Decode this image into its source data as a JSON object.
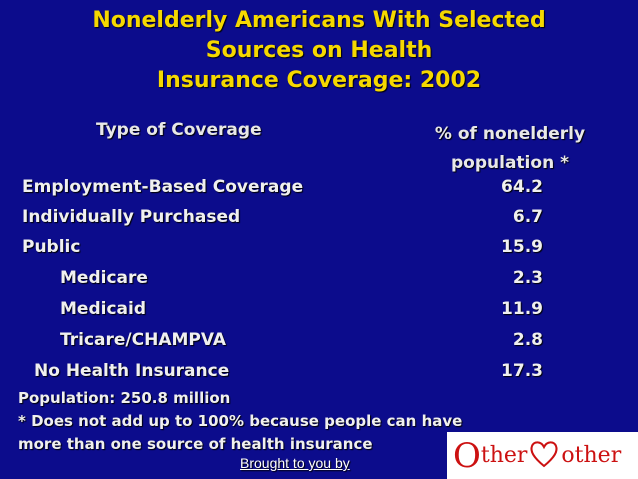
{
  "title": {
    "line1": "Nonelderly Americans With Selected",
    "line2": "Sources on Health",
    "line3": "Insurance Coverage: 2002"
  },
  "table": {
    "col_type": "Type of Coverage",
    "col_pct_line1": "% of nonelderly",
    "col_pct_line2": "population *",
    "rows": [
      {
        "label": "Employment-Based Coverage",
        "value": "64.2"
      },
      {
        "label": "Individually Purchased",
        "value": "6.7"
      },
      {
        "label": "Public",
        "value": "15.9"
      },
      {
        "label": "Medicare",
        "value": "2.3"
      },
      {
        "label": "Medicaid",
        "value": "11.9"
      },
      {
        "label": "Tricare/CHAMPVA",
        "value": "2.8"
      },
      {
        "label": "No Health Insurance",
        "value": "17.3"
      }
    ]
  },
  "notes": {
    "population": "Population: 250.8 million",
    "footnote_line1": "* Does not add up to 100% because people can have",
    "footnote_line2": "more than one source of health insurance"
  },
  "footer": {
    "brought_by": "Brought to you by",
    "logo_o": "O",
    "logo_word1": "ther",
    "logo_word2": "other"
  },
  "colors": {
    "background": "#0c0c8c",
    "title": "#f5d800",
    "logo_red": "#cc1111"
  }
}
